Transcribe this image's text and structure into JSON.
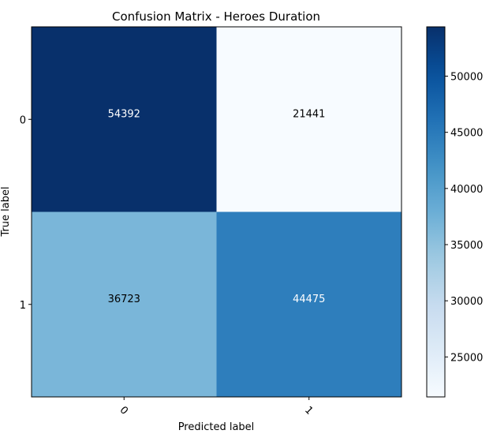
{
  "chart_data": {
    "type": "heatmap",
    "title": "Confusion Matrix - Heroes Duration",
    "xlabel": "Predicted label",
    "ylabel": "True label",
    "x_categories": [
      "0",
      "1"
    ],
    "y_categories": [
      "0",
      "1"
    ],
    "values": [
      [
        54392,
        21441
      ],
      [
        36723,
        44475
      ]
    ],
    "colormap": "Blues",
    "colorbar": {
      "min": 21441,
      "max": 54392,
      "ticks": [
        25000,
        30000,
        35000,
        40000,
        45000,
        50000
      ]
    },
    "grid": false,
    "text_color_dark": "#ffffff",
    "text_color_light": "#000000"
  }
}
